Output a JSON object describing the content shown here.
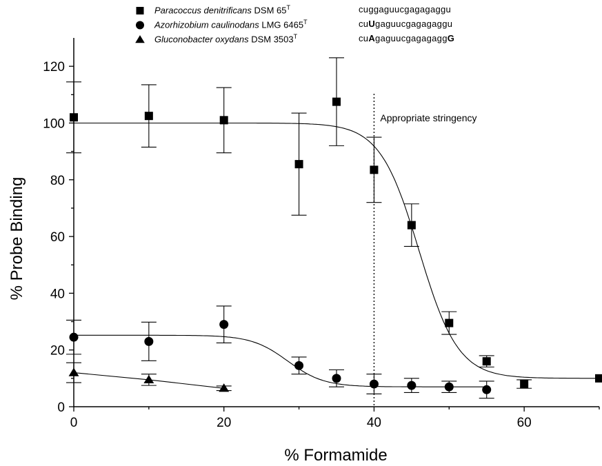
{
  "chart_data": {
    "type": "scatter",
    "xlabel": "% Formamide",
    "ylabel": "% Probe Binding",
    "xlim": [
      0,
      70
    ],
    "ylim": [
      0,
      130
    ],
    "xticks": [
      0,
      20,
      40,
      60
    ],
    "yticks": [
      0,
      20,
      40,
      60,
      80,
      100,
      120
    ],
    "annotation": {
      "text": "Appropriate stringency",
      "x": 40
    },
    "series": [
      {
        "name": "Paracoccus denitrificans DSM 65T",
        "species": "Paracoccus denitrificans",
        "strain": "DSM 65",
        "sup": "T",
        "marker": "square",
        "sequence": [
          [
            "cuggaguucgagagaggu",
            false
          ]
        ],
        "points": [
          {
            "x": 0,
            "y": 102,
            "err": 12.5
          },
          {
            "x": 10,
            "y": 102.5,
            "err": 11
          },
          {
            "x": 20,
            "y": 101,
            "err": 11.5
          },
          {
            "x": 30,
            "y": 85.5,
            "err": 18
          },
          {
            "x": 35,
            "y": 107.5,
            "err": 15.5
          },
          {
            "x": 40,
            "y": 83.5,
            "err": 11.5
          },
          {
            "x": 45,
            "y": 64,
            "err": 7.5
          },
          {
            "x": 50,
            "y": 29.5,
            "err": 4
          },
          {
            "x": 55,
            "y": 16,
            "err": 2
          },
          {
            "x": 60,
            "y": 8,
            "err": 1.5
          },
          {
            "x": 70,
            "y": 10,
            "err": 0
          }
        ],
        "fit": {
          "top": 100,
          "bottom": 10,
          "mid": 46,
          "slope": 2.6,
          "xmin": 0,
          "xmax": 70
        }
      },
      {
        "name": "Azorhizobium caulinodans LMG 6465T",
        "species": "Azorhizobium caulinodans",
        "strain": "LMG 6465",
        "sup": "T",
        "marker": "circle",
        "sequence": [
          [
            "cu",
            false
          ],
          [
            "U",
            true
          ],
          [
            "gaguucgagagaggu",
            false
          ]
        ],
        "points": [
          {
            "x": 0,
            "y": 24.5,
            "err": 6
          },
          {
            "x": 10,
            "y": 23,
            "err": 6.8
          },
          {
            "x": 20,
            "y": 29,
            "err": 6.5
          },
          {
            "x": 30,
            "y": 14.5,
            "err": 3
          },
          {
            "x": 35,
            "y": 10,
            "err": 3
          },
          {
            "x": 40,
            "y": 8,
            "err": 3.5
          },
          {
            "x": 45,
            "y": 7.5,
            "err": 2.5
          },
          {
            "x": 50,
            "y": 7,
            "err": 2
          },
          {
            "x": 55,
            "y": 6,
            "err": 3
          }
        ],
        "fit": {
          "top": 25.2,
          "bottom": 7,
          "mid": 28.5,
          "slope": 2.4,
          "xmin": 0,
          "xmax": 55
        }
      },
      {
        "name": "Gluconobacter oxydans DSM 3503T",
        "species": "Gluconobacter oxydans",
        "strain": "DSM 3503",
        "sup": "T",
        "marker": "triangle",
        "sequence": [
          [
            "cu",
            false
          ],
          [
            "A",
            true
          ],
          [
            "gaguucgagagagg",
            false
          ],
          [
            "G",
            true
          ]
        ],
        "points": [
          {
            "x": 0,
            "y": 12,
            "err": 3.5
          },
          {
            "x": 10,
            "y": 9.5,
            "err": 2
          },
          {
            "x": 20,
            "y": 6.5,
            "err": 0.8
          }
        ],
        "line": true
      }
    ]
  }
}
